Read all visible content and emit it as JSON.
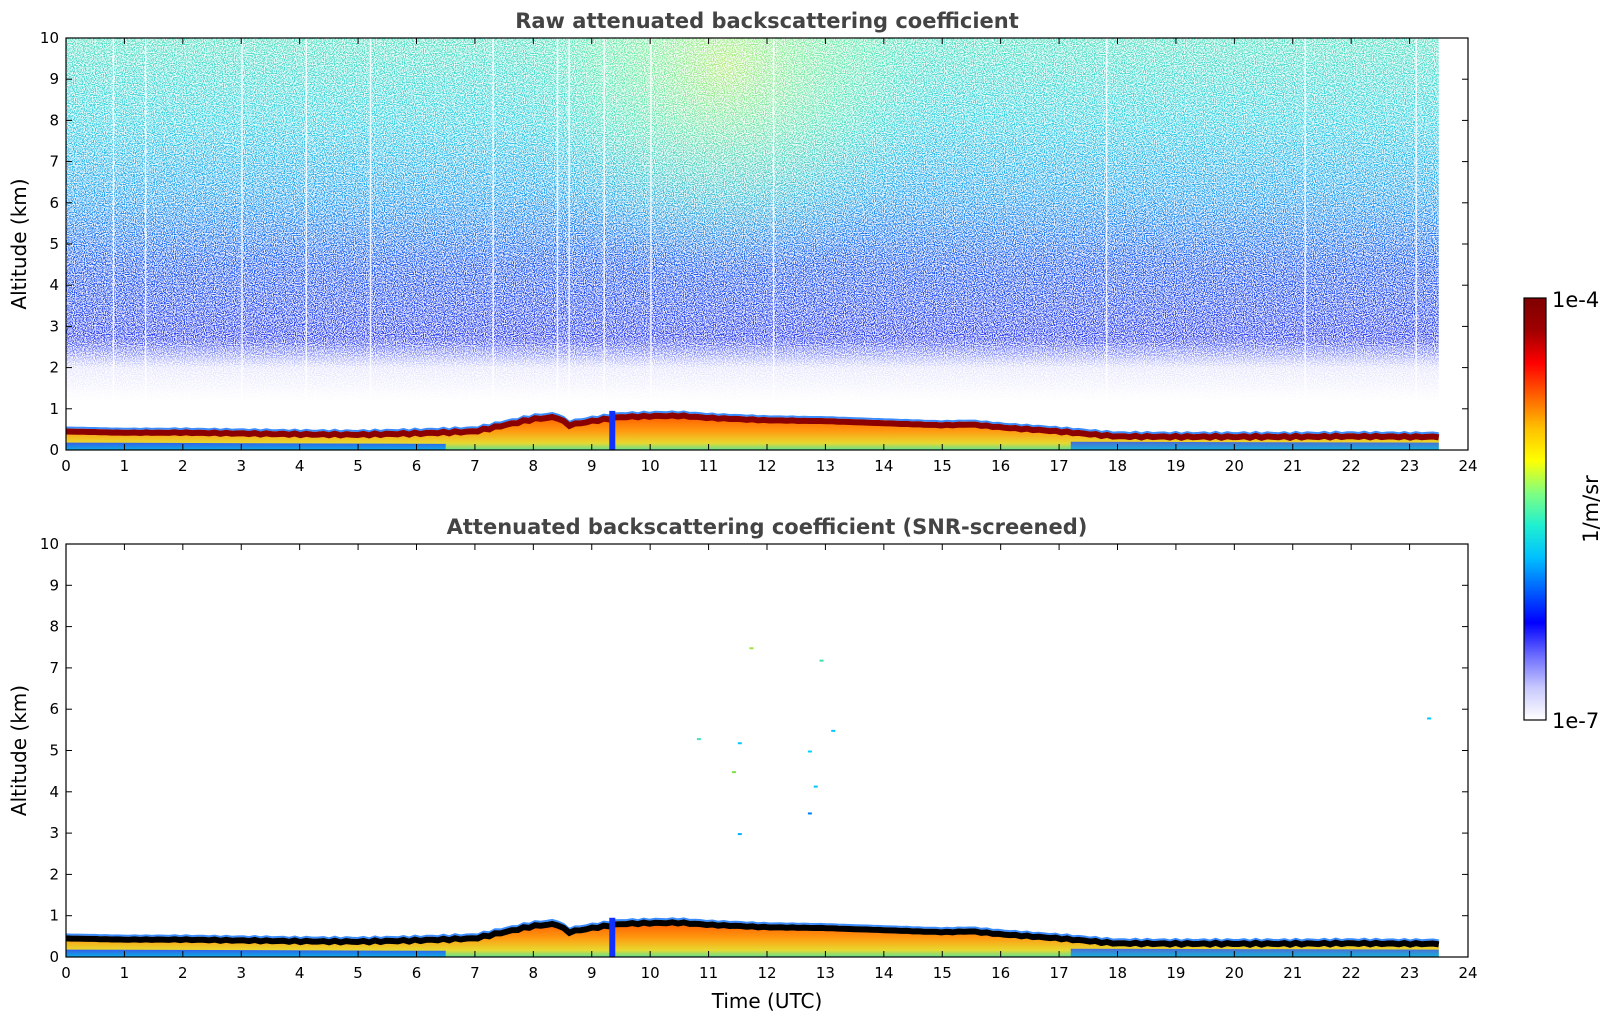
{
  "chart_data": [
    {
      "type": "heatmap",
      "title": "Raw attenuated backscattering coefficient",
      "xlabel": "",
      "ylabel": "Altitude (km)",
      "xlim": [
        0,
        24
      ],
      "ylim": [
        0,
        10
      ],
      "x_ticks": [
        "0",
        "1",
        "2",
        "3",
        "4",
        "5",
        "6",
        "7",
        "8",
        "9",
        "10",
        "11",
        "12",
        "13",
        "14",
        "15",
        "16",
        "17",
        "18",
        "19",
        "20",
        "21",
        "22",
        "23",
        "24"
      ],
      "y_ticks": [
        "0",
        "1",
        "2",
        "3",
        "4",
        "5",
        "6",
        "7",
        "8",
        "9",
        "10"
      ],
      "data_extent_hours": [
        0,
        23.5
      ],
      "boundary_layer_top_km": {
        "x": [
          0,
          1,
          2,
          3,
          4,
          5,
          6,
          7,
          7.5,
          8,
          8.4,
          8.6,
          9,
          9.5,
          10,
          10.5,
          11,
          12,
          13,
          14,
          15,
          15.5,
          16,
          16.5,
          17,
          17.8,
          18,
          19,
          20,
          21,
          22,
          23,
          23.5
        ],
        "y": [
          0.45,
          0.42,
          0.42,
          0.4,
          0.38,
          0.37,
          0.4,
          0.45,
          0.6,
          0.75,
          0.8,
          0.6,
          0.7,
          0.8,
          0.82,
          0.83,
          0.78,
          0.72,
          0.7,
          0.65,
          0.6,
          0.62,
          0.55,
          0.5,
          0.45,
          0.35,
          0.33,
          0.32,
          0.32,
          0.32,
          0.33,
          0.32,
          0.32
        ]
      },
      "noise_floor_km": 2,
      "signal_cloud_center_hour": 11.3
    },
    {
      "type": "heatmap",
      "title": "Attenuated backscattering coefficient (SNR-screened)",
      "xlabel": "Time (UTC)",
      "ylabel": "Altitude (km)",
      "xlim": [
        0,
        24
      ],
      "ylim": [
        0,
        10
      ],
      "x_ticks": [
        "0",
        "1",
        "2",
        "3",
        "4",
        "5",
        "6",
        "7",
        "8",
        "9",
        "10",
        "11",
        "12",
        "13",
        "14",
        "15",
        "16",
        "17",
        "18",
        "19",
        "20",
        "21",
        "22",
        "23",
        "24"
      ],
      "y_ticks": [
        "0",
        "1",
        "2",
        "3",
        "4",
        "5",
        "6",
        "7",
        "8",
        "9",
        "10"
      ],
      "data_extent_hours": [
        0,
        23.5
      ]
    }
  ],
  "colorbar": {
    "min_label": "1e-7",
    "max_label": "1e-4",
    "units_label": "1/m/sr",
    "colormap": [
      "#ffffff",
      "#c8c8ff",
      "#6a6aff",
      "#0000ff",
      "#0060ff",
      "#00c0ff",
      "#20f0d0",
      "#80ff80",
      "#ffff00",
      "#ffc000",
      "#ff6000",
      "#ff0000",
      "#a00000",
      "#800000"
    ]
  }
}
